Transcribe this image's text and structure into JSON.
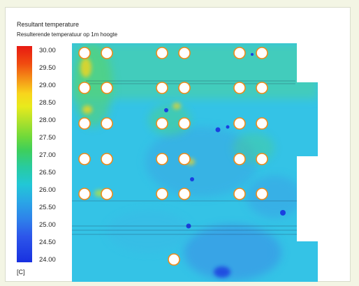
{
  "header": {
    "title": "Resultant temperature",
    "subtitle": "Resulterende temperatuur op 1m hoogte"
  },
  "legend": {
    "ticks": [
      "30.00",
      "29.50",
      "29.00",
      "28.50",
      "28.00",
      "27.50",
      "27.00",
      "26.50",
      "26.00",
      "25.50",
      "25.00",
      "24.50",
      "24.00"
    ],
    "unit": "[C]",
    "max_color": "#e81a12",
    "min_color": "#1830e0"
  },
  "map": {
    "background_color": "#34c3e6",
    "cold_color": "#1a40e0",
    "warm_color": "#f5d51c",
    "column_color": "#ffffff"
  }
}
